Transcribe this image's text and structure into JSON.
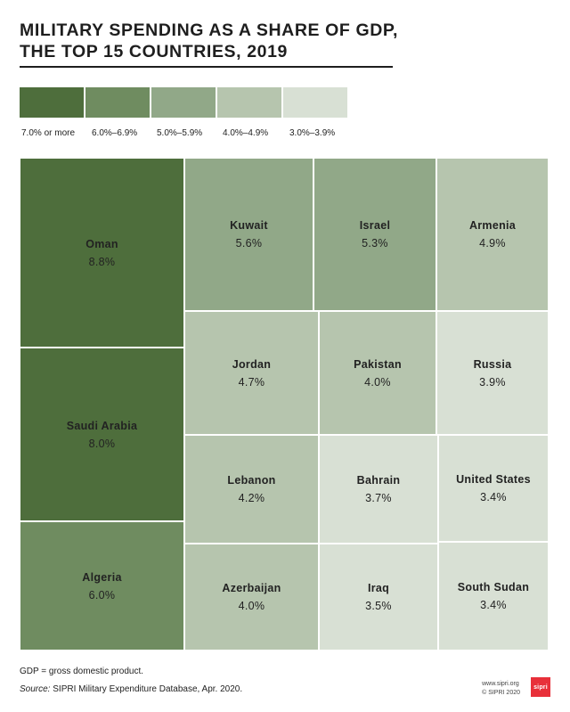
{
  "header": {
    "title_line1": "MILITARY SPENDING AS A SHARE OF GDP,",
    "title_line2": "THE TOP 15 COUNTRIES, 2019"
  },
  "chart_data": {
    "type": "treemap",
    "unit": "% of GDP",
    "legend": [
      {
        "label": "7.0% or more",
        "color": "#4e6e3c"
      },
      {
        "label": "6.0%–6.9%",
        "color": "#6f8c60"
      },
      {
        "label": "5.0%–5.9%",
        "color": "#91a888"
      },
      {
        "label": "4.0%–4.9%",
        "color": "#b6c5ae"
      },
      {
        "label": "3.0%–3.9%",
        "color": "#d8e0d4"
      }
    ],
    "items": [
      {
        "country": "Oman",
        "value": 8.8,
        "label": "8.8%"
      },
      {
        "country": "Saudi Arabia",
        "value": 8.0,
        "label": "8.0%"
      },
      {
        "country": "Algeria",
        "value": 6.0,
        "label": "6.0%"
      },
      {
        "country": "Kuwait",
        "value": 5.6,
        "label": "5.6%"
      },
      {
        "country": "Israel",
        "value": 5.3,
        "label": "5.3%"
      },
      {
        "country": "Armenia",
        "value": 4.9,
        "label": "4.9%"
      },
      {
        "country": "Jordan",
        "value": 4.7,
        "label": "4.7%"
      },
      {
        "country": "Pakistan",
        "value": 4.0,
        "label": "4.0%"
      },
      {
        "country": "Russia",
        "value": 3.9,
        "label": "3.9%"
      },
      {
        "country": "Lebanon",
        "value": 4.2,
        "label": "4.2%"
      },
      {
        "country": "Bahrain",
        "value": 3.7,
        "label": "3.7%"
      },
      {
        "country": "United States",
        "value": 3.4,
        "label": "3.4%"
      },
      {
        "country": "Azerbaijan",
        "value": 4.0,
        "label": "4.0%"
      },
      {
        "country": "Iraq",
        "value": 3.5,
        "label": "3.5%"
      },
      {
        "country": "South Sudan",
        "value": 3.4,
        "label": "3.4%"
      }
    ]
  },
  "footer": {
    "note": "GDP = gross domestic product.",
    "source_label": "Source:",
    "source_text": " SIPRI Military Expenditure Database, Apr. 2020.",
    "credit_line1": "www.sipri.org",
    "credit_line2": "© SIPRI 2020",
    "logo_text": "sipri"
  }
}
